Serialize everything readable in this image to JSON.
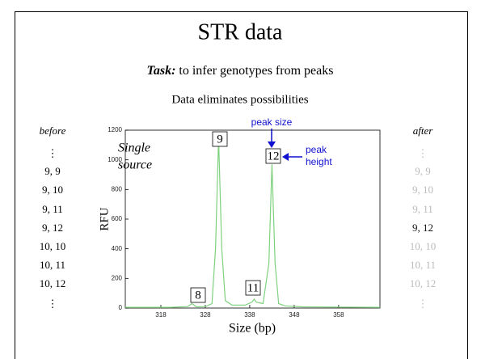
{
  "title": "STR data",
  "task_label": "Task:",
  "task_text": " to infer genotypes from peaks",
  "subtitle": "Data eliminates possibilities",
  "before_label": "before",
  "before_list": [
    "⋮",
    "9, 9",
    "9, 10",
    "9, 11",
    "9, 12",
    "10, 10",
    "10, 11",
    "10, 12",
    "⋮"
  ],
  "after_label": "after",
  "after_list": [
    {
      "text": "⋮",
      "color": "#bbbbbb"
    },
    {
      "text": "9, 9",
      "color": "#bbbbbb"
    },
    {
      "text": "9, 10",
      "color": "#bbbbbb"
    },
    {
      "text": "9, 11",
      "color": "#bbbbbb"
    },
    {
      "text": "9, 12",
      "color": "#111111"
    },
    {
      "text": "10, 10",
      "color": "#bbbbbb"
    },
    {
      "text": "10, 11",
      "color": "#bbbbbb"
    },
    {
      "text": "10, 12",
      "color": "#bbbbbb"
    },
    {
      "text": "⋮",
      "color": "#bbbbbb"
    }
  ],
  "chart_data": {
    "type": "line",
    "xlabel": "Size (bp)",
    "ylabel": "RFU",
    "inset_text": [
      "Single",
      "source"
    ],
    "xlim": [
      310,
      367.3
    ],
    "xticks": [
      318,
      328,
      338,
      348,
      358
    ],
    "ylim": [
      0,
      1200
    ],
    "yticks": [
      0,
      200,
      400,
      600,
      800,
      1000,
      1200
    ],
    "series": [
      {
        "color": "#7fd17f",
        "x": [
          310,
          320,
          324,
          325,
          326,
          328,
          329.5,
          330.3,
          331,
          331.7,
          332.5,
          334,
          337,
          338.5,
          339,
          339.5,
          341,
          342.3,
          343,
          343.7,
          344.5,
          346,
          350,
          367.3
        ],
        "y": [
          5,
          5,
          10,
          30,
          8,
          10,
          30,
          400,
          1150,
          400,
          50,
          20,
          20,
          40,
          60,
          40,
          30,
          300,
          970,
          300,
          30,
          15,
          8,
          5
        ]
      }
    ],
    "peak_labels": [
      "8",
      "9",
      "11",
      "12"
    ],
    "annotations": [
      "peak size",
      "peak",
      "height"
    ],
    "annotation_color": "#1010d0"
  }
}
